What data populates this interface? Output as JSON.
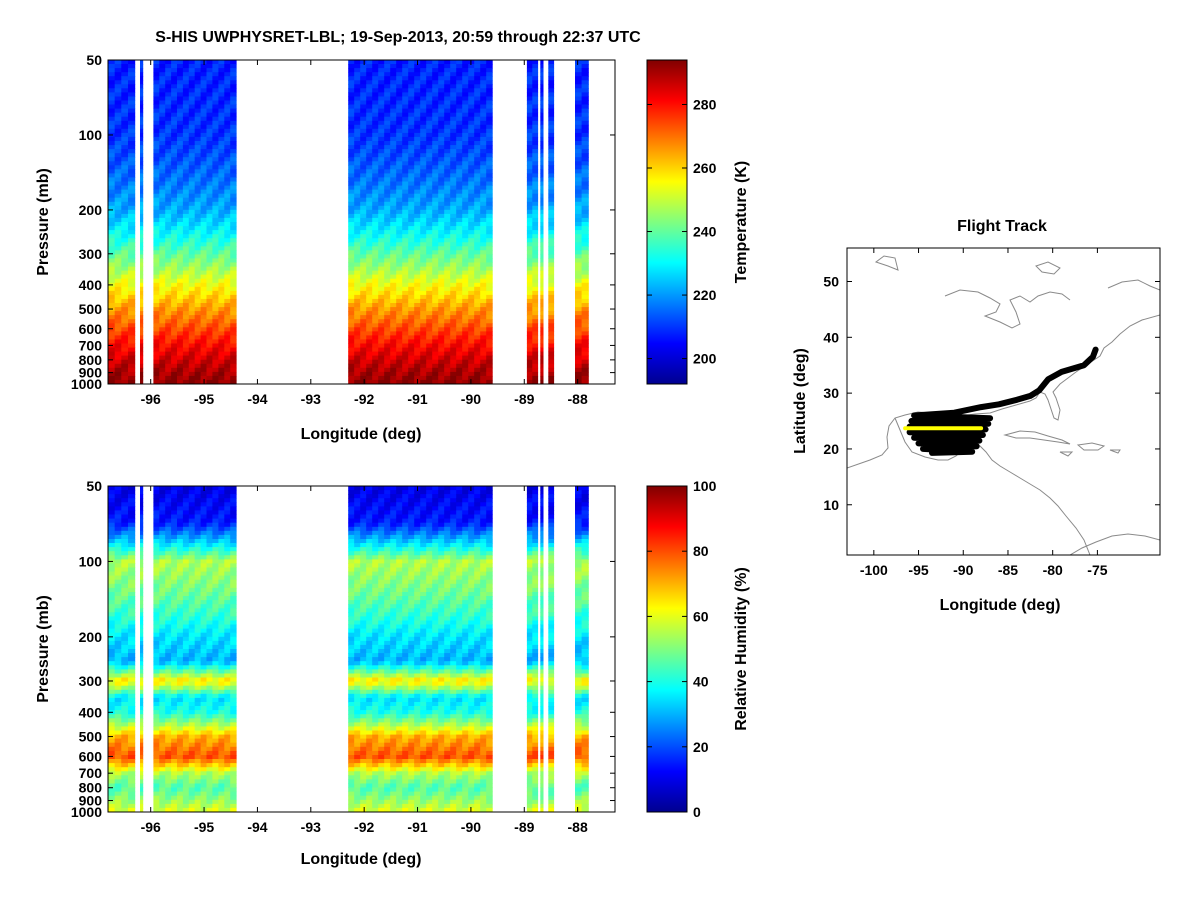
{
  "figure_title": "S-HIS UWPHYSRET-LBL;   19-Sep-2013, 20:59 through 22:37 UTC",
  "chart_data": [
    {
      "id": "temperature",
      "type": "heatmap",
      "title": "",
      "xlabel": "Longitude (deg)",
      "ylabel": "Pressure (mb)",
      "xlim": [
        -96.8,
        -87.3
      ],
      "ylim": [
        50,
        1000
      ],
      "yscale": "log",
      "xticks": [
        -96,
        -95,
        -94,
        -93,
        -92,
        -91,
        -90,
        -89,
        -88
      ],
      "xtick_labels": [
        "-96",
        "-95",
        "-94",
        "-93",
        "-92",
        "-91",
        "-90",
        "-89",
        "-88"
      ],
      "yticks": [
        50,
        100,
        200,
        300,
        400,
        500,
        600,
        700,
        800,
        900,
        1000
      ],
      "ytick_labels": [
        "50",
        "100",
        "200",
        "300",
        "400",
        "500",
        "600",
        "700",
        "800",
        "900",
        "1000"
      ],
      "data_segments": [
        [
          -96.8,
          -96.3
        ],
        [
          -96.2,
          -96.15
        ],
        [
          -95.95,
          -94.4
        ],
        [
          -92.3,
          -89.6
        ],
        [
          -88.95,
          -88.75
        ],
        [
          -88.7,
          -88.65
        ],
        [
          -88.55,
          -88.45
        ],
        [
          -88.05,
          -87.8
        ]
      ],
      "profile_pressure": [
        50,
        100,
        200,
        300,
        400,
        500,
        600,
        700,
        800,
        900,
        1000
      ],
      "profile_value": [
        208,
        210,
        222,
        240,
        255,
        266,
        274,
        281,
        286,
        290,
        293
      ],
      "colorbar": {
        "label": "Temperature (K)",
        "range": [
          192,
          294
        ],
        "ticks": [
          200,
          220,
          240,
          260,
          280
        ],
        "tick_labels": [
          "200",
          "220",
          "240",
          "260",
          "280"
        ]
      }
    },
    {
      "id": "relative_humidity",
      "type": "heatmap",
      "title": "",
      "xlabel": "Longitude (deg)",
      "ylabel": "Pressure (mb)",
      "xlim": [
        -96.8,
        -87.3
      ],
      "ylim": [
        50,
        1000
      ],
      "yscale": "log",
      "xticks": [
        -96,
        -95,
        -94,
        -93,
        -92,
        -91,
        -90,
        -89,
        -88
      ],
      "xtick_labels": [
        "-96",
        "-95",
        "-94",
        "-93",
        "-92",
        "-91",
        "-90",
        "-89",
        "-88"
      ],
      "yticks": [
        50,
        100,
        200,
        300,
        400,
        500,
        600,
        700,
        800,
        900,
        1000
      ],
      "ytick_labels": [
        "50",
        "100",
        "200",
        "300",
        "400",
        "500",
        "600",
        "700",
        "800",
        "900",
        "1000"
      ],
      "data_segments": [
        [
          -96.8,
          -96.3
        ],
        [
          -96.2,
          -96.15
        ],
        [
          -95.95,
          -94.4
        ],
        [
          -92.3,
          -89.6
        ],
        [
          -88.95,
          -88.75
        ],
        [
          -88.7,
          -88.65
        ],
        [
          -88.55,
          -88.45
        ],
        [
          -88.05,
          -87.8
        ]
      ],
      "profile_pressure": [
        50,
        70,
        100,
        150,
        200,
        250,
        300,
        350,
        400,
        500,
        600,
        700,
        800,
        1000
      ],
      "profile_value": [
        10,
        15,
        55,
        45,
        35,
        30,
        65,
        35,
        40,
        70,
        80,
        55,
        45,
        60
      ],
      "colorbar": {
        "label": "Relative Humidity (%)",
        "range": [
          0,
          100
        ],
        "ticks": [
          0,
          20,
          40,
          60,
          80,
          100
        ],
        "tick_labels": [
          "0",
          "20",
          "40",
          "60",
          "80",
          "100"
        ]
      }
    },
    {
      "id": "flight_track",
      "type": "line",
      "title": "Flight Track",
      "xlabel": "Longitude (deg)",
      "ylabel": "Latitude (deg)",
      "xlim": [
        -103,
        -68
      ],
      "ylim": [
        1,
        56
      ],
      "xticks": [
        -100,
        -95,
        -90,
        -85,
        -80,
        -75
      ],
      "xtick_labels": [
        "-100",
        "-95",
        "-90",
        "-85",
        "-80",
        "-75"
      ],
      "yticks": [
        10,
        20,
        30,
        40,
        50
      ],
      "ytick_labels": [
        "10",
        "20",
        "30",
        "40",
        "50"
      ],
      "series": [
        {
          "name": "full track",
          "color": "#000000",
          "lon": [
            -75.2,
            -75.5,
            -76.5,
            -79,
            -80.5,
            -81.5,
            -82.5,
            -84,
            -86,
            -88,
            -91,
            -95.5,
            -87,
            -95.8,
            -87.2,
            -96,
            -87.5,
            -96,
            -87.8,
            -95.5,
            -88.2,
            -95,
            -88.5,
            -94.5,
            -89,
            -93.5
          ],
          "lat": [
            37.8,
            36.5,
            35,
            33.8,
            32.5,
            30.5,
            29.5,
            28.8,
            28,
            27.5,
            26.5,
            26,
            25.5,
            25,
            24.5,
            24,
            23.5,
            23,
            22.5,
            22,
            21.5,
            21,
            20.5,
            20,
            19.5,
            19.3
          ]
        },
        {
          "name": "analyzed segment",
          "color": "#ffff00",
          "lon": [
            -96.5,
            -88
          ],
          "lat": [
            23.7,
            23.7
          ]
        }
      ]
    }
  ],
  "jet_colormap": [
    "#00008f",
    "#0000ff",
    "#00ffff",
    "#ffff00",
    "#ff0000",
    "#800000"
  ]
}
